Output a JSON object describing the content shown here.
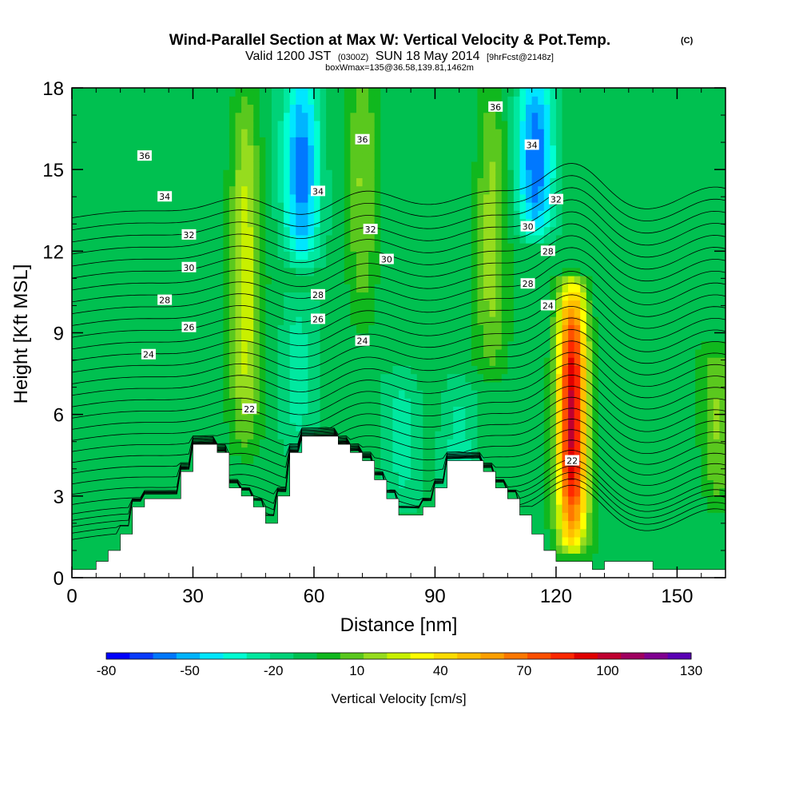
{
  "chart_data": {
    "type": "heatmap",
    "title": "Wind-Parallel Section at Max W: Vertical Velocity & Pot.Temp.",
    "title_mark": "(C)",
    "subtitle_main": "Valid 1200 JST",
    "subtitle_zulu": "(0300Z)",
    "subtitle_date": "SUN 18 May 2014",
    "subtitle_fcst": "[9hrFcst@2148z]",
    "subtitle2": "boxWmax=135@36.58,139.81,1462m",
    "xlabel": "Distance [nm]",
    "ylabel": "Height [Kft MSL]",
    "xlim": [
      0,
      162
    ],
    "ylim": [
      0,
      18
    ],
    "xticks": [
      "0",
      "30",
      "60",
      "90",
      "120",
      "150"
    ],
    "yticks": [
      "0",
      "3",
      "6",
      "9",
      "12",
      "15",
      "18"
    ],
    "colorbar": {
      "label": "Vertical Velocity [cm/s]",
      "min": -80,
      "max": 130,
      "step": 10,
      "tick_labels": [
        "-80",
        "-50",
        "-20",
        "10",
        "40",
        "70",
        "100",
        "130"
      ],
      "colors": [
        "#0000ff",
        "#0a3cff",
        "#0078ff",
        "#00b4ff",
        "#00e6ff",
        "#00ffd2",
        "#00e8a0",
        "#00d278",
        "#00c050",
        "#10b81e",
        "#5ac81e",
        "#96dc1e",
        "#c8f000",
        "#ffff00",
        "#ffdc00",
        "#ffbe00",
        "#ffa000",
        "#ff7800",
        "#ff5000",
        "#ff2800",
        "#e00000",
        "#c00030",
        "#a00060",
        "#800090",
        "#5a00b4"
      ]
    },
    "updrafts": [
      {
        "x": 43,
        "top": 18,
        "bottom": 5.0,
        "peak": 45
      },
      {
        "x": 72,
        "top": 18,
        "bottom": 9.5,
        "peak": 30
      },
      {
        "x": 104,
        "top": 18,
        "bottom": 8.0,
        "peak": 35
      },
      {
        "x": 124,
        "top": 10.5,
        "bottom": 1.5,
        "peak": 135
      },
      {
        "x": 160,
        "top": 8,
        "bottom": 3,
        "peak": 30
      }
    ],
    "downdrafts": [
      {
        "x": 57,
        "top": 18,
        "bottom": 12,
        "peak": -55
      },
      {
        "x": 115,
        "top": 18,
        "bottom": 13,
        "peak": -60
      },
      {
        "x": 56,
        "top": 10,
        "bottom": 5,
        "peak": -15
      },
      {
        "x": 82,
        "top": 7,
        "bottom": 3,
        "peak": -15
      },
      {
        "x": 96,
        "top": 7,
        "bottom": 3,
        "peak": -15
      }
    ],
    "terrain": [
      [
        0,
        0.3
      ],
      [
        6,
        0.3
      ],
      [
        6,
        0.6
      ],
      [
        9,
        0.6
      ],
      [
        9,
        1.0
      ],
      [
        12,
        1.0
      ],
      [
        12,
        1.6
      ],
      [
        15,
        1.6
      ],
      [
        15,
        2.6
      ],
      [
        18,
        2.6
      ],
      [
        18,
        2.9
      ],
      [
        27,
        2.9
      ],
      [
        27,
        3.9
      ],
      [
        30,
        3.9
      ],
      [
        30,
        4.9
      ],
      [
        36,
        4.9
      ],
      [
        36,
        4.6
      ],
      [
        39,
        4.6
      ],
      [
        39,
        3.3
      ],
      [
        42,
        3.3
      ],
      [
        42,
        3.0
      ],
      [
        45,
        3.0
      ],
      [
        45,
        2.6
      ],
      [
        48,
        2.6
      ],
      [
        48,
        2.0
      ],
      [
        51,
        2.0
      ],
      [
        51,
        3.0
      ],
      [
        54,
        3.0
      ],
      [
        54,
        4.6
      ],
      [
        57,
        4.6
      ],
      [
        57,
        5.2
      ],
      [
        66,
        5.2
      ],
      [
        66,
        4.9
      ],
      [
        69,
        4.9
      ],
      [
        69,
        4.6
      ],
      [
        72,
        4.6
      ],
      [
        72,
        4.3
      ],
      [
        75,
        4.3
      ],
      [
        75,
        3.6
      ],
      [
        78,
        3.6
      ],
      [
        78,
        2.9
      ],
      [
        81,
        2.9
      ],
      [
        81,
        2.3
      ],
      [
        87,
        2.3
      ],
      [
        87,
        2.6
      ],
      [
        90,
        2.6
      ],
      [
        90,
        3.3
      ],
      [
        93,
        3.3
      ],
      [
        93,
        4.3
      ],
      [
        102,
        4.3
      ],
      [
        102,
        3.9
      ],
      [
        105,
        3.9
      ],
      [
        105,
        3.3
      ],
      [
        108,
        3.3
      ],
      [
        108,
        2.9
      ],
      [
        111,
        2.9
      ],
      [
        111,
        2.3
      ],
      [
        114,
        2.3
      ],
      [
        114,
        1.6
      ],
      [
        117,
        1.6
      ],
      [
        117,
        1.0
      ],
      [
        120,
        1.0
      ],
      [
        120,
        0.6
      ],
      [
        129,
        0.6
      ],
      [
        129,
        0.3
      ],
      [
        132,
        0.3
      ],
      [
        132,
        0.6
      ],
      [
        144,
        0.6
      ],
      [
        144,
        0.3
      ],
      [
        162,
        0.3
      ],
      [
        162,
        0
      ]
    ],
    "isentropes": [
      22,
      22.5,
      23,
      23.5,
      24,
      24.5,
      25,
      25.5,
      26,
      26.5,
      27,
      27.5,
      28,
      28.5,
      29,
      29.5,
      30,
      30.5,
      31,
      31.5,
      32,
      32.5,
      33,
      33.5,
      34,
      34.5,
      35,
      35.5,
      36,
      36.5,
      37
    ],
    "contour_labels": [
      {
        "x": 18,
        "y": 15.5,
        "text": "36"
      },
      {
        "x": 23,
        "y": 14.0,
        "text": "34"
      },
      {
        "x": 29,
        "y": 12.6,
        "text": "32"
      },
      {
        "x": 29,
        "y": 11.4,
        "text": "30"
      },
      {
        "x": 23,
        "y": 10.2,
        "text": "28"
      },
      {
        "x": 29,
        "y": 9.2,
        "text": "26"
      },
      {
        "x": 19,
        "y": 8.2,
        "text": "24"
      },
      {
        "x": 44,
        "y": 6.2,
        "text": "22"
      },
      {
        "x": 72,
        "y": 16.1,
        "text": "36"
      },
      {
        "x": 61,
        "y": 14.2,
        "text": "34"
      },
      {
        "x": 74,
        "y": 12.8,
        "text": "32"
      },
      {
        "x": 78,
        "y": 11.7,
        "text": "30"
      },
      {
        "x": 61,
        "y": 10.4,
        "text": "28"
      },
      {
        "x": 61,
        "y": 9.5,
        "text": "26"
      },
      {
        "x": 72,
        "y": 8.7,
        "text": "24"
      },
      {
        "x": 105,
        "y": 17.3,
        "text": "36"
      },
      {
        "x": 114,
        "y": 15.9,
        "text": "34"
      },
      {
        "x": 120,
        "y": 13.9,
        "text": "32"
      },
      {
        "x": 113,
        "y": 12.9,
        "text": "30"
      },
      {
        "x": 118,
        "y": 12.0,
        "text": "28"
      },
      {
        "x": 113,
        "y": 10.8,
        "text": "28"
      },
      {
        "x": 118,
        "y": 10.0,
        "text": "24"
      },
      {
        "x": 124,
        "y": 4.3,
        "text": "22"
      }
    ]
  }
}
